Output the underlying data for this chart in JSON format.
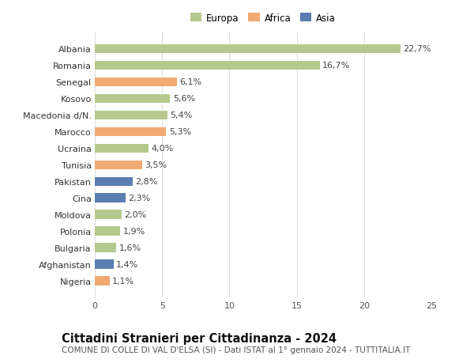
{
  "countries": [
    "Albania",
    "Romania",
    "Senegal",
    "Kosovo",
    "Macedonia d/N.",
    "Marocco",
    "Ucraina",
    "Tunisia",
    "Pakistan",
    "Cina",
    "Moldova",
    "Polonia",
    "Bulgaria",
    "Afghanistan",
    "Nigeria"
  ],
  "values": [
    22.7,
    16.7,
    6.1,
    5.6,
    5.4,
    5.3,
    4.0,
    3.5,
    2.8,
    2.3,
    2.0,
    1.9,
    1.6,
    1.4,
    1.1
  ],
  "labels": [
    "22,7%",
    "16,7%",
    "6,1%",
    "5,6%",
    "5,4%",
    "5,3%",
    "4,0%",
    "3,5%",
    "2,8%",
    "2,3%",
    "2,0%",
    "1,9%",
    "1,6%",
    "1,4%",
    "1,1%"
  ],
  "continents": [
    "Europa",
    "Europa",
    "Africa",
    "Europa",
    "Europa",
    "Africa",
    "Europa",
    "Africa",
    "Asia",
    "Asia",
    "Europa",
    "Europa",
    "Europa",
    "Asia",
    "Africa"
  ],
  "colors": {
    "Europa": "#b5c98e",
    "Africa": "#f0aa72",
    "Asia": "#5b7db1"
  },
  "xlim": [
    0,
    25
  ],
  "xticks": [
    0,
    5,
    10,
    15,
    20,
    25
  ],
  "title": "Cittadini Stranieri per Cittadinanza - 2024",
  "subtitle": "COMUNE DI COLLE DI VAL D'ELSA (SI) - Dati ISTAT al 1° gennaio 2024 - TUTTITALIA.IT",
  "background_color": "#ffffff",
  "grid_color": "#dddddd",
  "bar_height": 0.55,
  "label_fontsize": 8.0,
  "title_fontsize": 10.5,
  "subtitle_fontsize": 7.5
}
